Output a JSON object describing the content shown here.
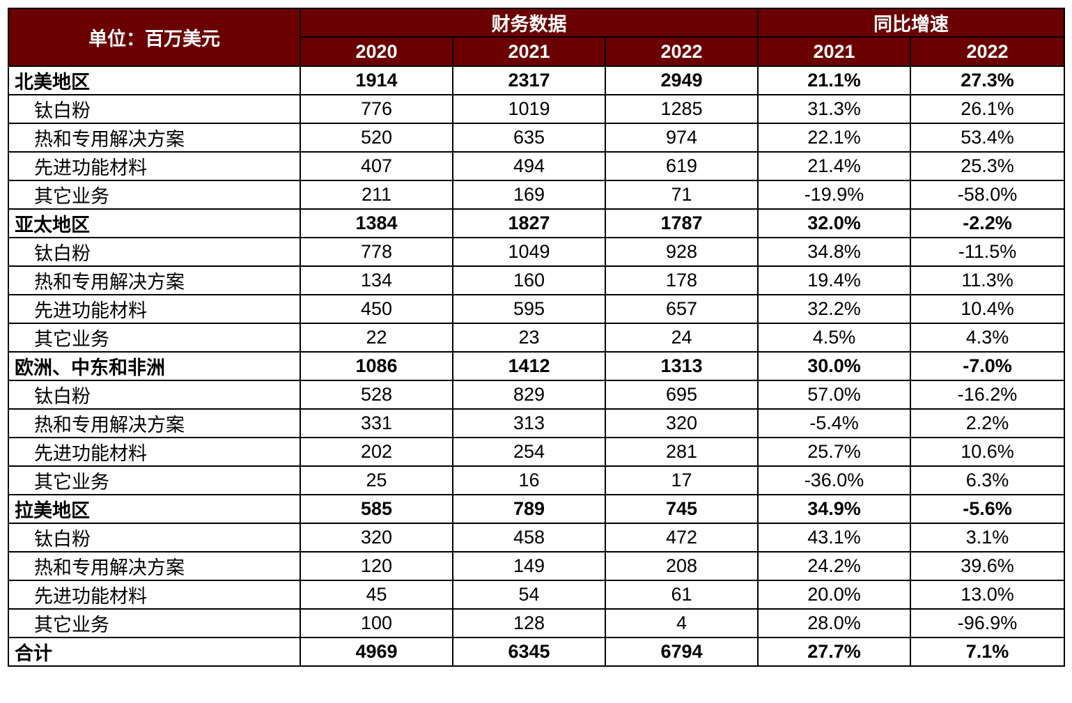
{
  "table": {
    "unit_label": "单位：百万美元",
    "group_headers": [
      "财务数据",
      "同比增速"
    ],
    "year_headers": [
      "2020",
      "2021",
      "2022",
      "2021",
      "2022"
    ],
    "rows": [
      {
        "label": "北美地区",
        "bold": true,
        "values": [
          "1914",
          "2317",
          "2949",
          "21.1%",
          "27.3%"
        ]
      },
      {
        "label": "钛白粉",
        "bold": false,
        "values": [
          "776",
          "1019",
          "1285",
          "31.3%",
          "26.1%"
        ]
      },
      {
        "label": "热和专用解决方案",
        "bold": false,
        "values": [
          "520",
          "635",
          "974",
          "22.1%",
          "53.4%"
        ]
      },
      {
        "label": "先进功能材料",
        "bold": false,
        "values": [
          "407",
          "494",
          "619",
          "21.4%",
          "25.3%"
        ]
      },
      {
        "label": "其它业务",
        "bold": false,
        "values": [
          "211",
          "169",
          "71",
          "-19.9%",
          "-58.0%"
        ]
      },
      {
        "label": "亚太地区",
        "bold": true,
        "values": [
          "1384",
          "1827",
          "1787",
          "32.0%",
          "-2.2%"
        ]
      },
      {
        "label": "钛白粉",
        "bold": false,
        "values": [
          "778",
          "1049",
          "928",
          "34.8%",
          "-11.5%"
        ]
      },
      {
        "label": "热和专用解决方案",
        "bold": false,
        "values": [
          "134",
          "160",
          "178",
          "19.4%",
          "11.3%"
        ]
      },
      {
        "label": "先进功能材料",
        "bold": false,
        "values": [
          "450",
          "595",
          "657",
          "32.2%",
          "10.4%"
        ]
      },
      {
        "label": "其它业务",
        "bold": false,
        "values": [
          "22",
          "23",
          "24",
          "4.5%",
          "4.3%"
        ]
      },
      {
        "label": "欧洲、中东和非洲",
        "bold": true,
        "values": [
          "1086",
          "1412",
          "1313",
          "30.0%",
          "-7.0%"
        ]
      },
      {
        "label": "钛白粉",
        "bold": false,
        "values": [
          "528",
          "829",
          "695",
          "57.0%",
          "-16.2%"
        ]
      },
      {
        "label": "热和专用解决方案",
        "bold": false,
        "values": [
          "331",
          "313",
          "320",
          "-5.4%",
          "2.2%"
        ]
      },
      {
        "label": "先进功能材料",
        "bold": false,
        "values": [
          "202",
          "254",
          "281",
          "25.7%",
          "10.6%"
        ]
      },
      {
        "label": "其它业务",
        "bold": false,
        "values": [
          "25",
          "16",
          "17",
          "-36.0%",
          "6.3%"
        ]
      },
      {
        "label": "拉美地区",
        "bold": true,
        "values": [
          "585",
          "789",
          "745",
          "34.9%",
          "-5.6%"
        ]
      },
      {
        "label": "钛白粉",
        "bold": false,
        "values": [
          "320",
          "458",
          "472",
          "43.1%",
          "3.1%"
        ]
      },
      {
        "label": "热和专用解决方案",
        "bold": false,
        "values": [
          "120",
          "149",
          "208",
          "24.2%",
          "39.6%"
        ]
      },
      {
        "label": "先进功能材料",
        "bold": false,
        "values": [
          "45",
          "54",
          "61",
          "20.0%",
          "13.0%"
        ]
      },
      {
        "label": "其它业务",
        "bold": false,
        "values": [
          "100",
          "128",
          "4",
          "28.0%",
          "-96.9%"
        ]
      },
      {
        "label": "合计",
        "bold": true,
        "values": [
          "4969",
          "6345",
          "6794",
          "27.7%",
          "7.1%"
        ]
      }
    ]
  },
  "colors": {
    "header_background": "#6a0000",
    "header_text": "#ffffff",
    "border": "#000000"
  }
}
